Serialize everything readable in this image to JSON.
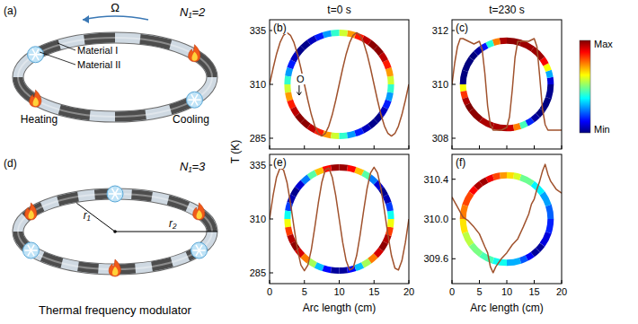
{
  "chart_data": [
    {
      "type": "line",
      "title": "t=0 s",
      "panel_label": "(b)",
      "annotations": [
        "O"
      ],
      "ylabel": "T (K)",
      "color": "#a0522d",
      "tick_labels": "y",
      "x": [
        0,
        0.5,
        1,
        1.5,
        2,
        2.5,
        3,
        3.5,
        4,
        4.5,
        5,
        5.5,
        6,
        6.5,
        7,
        7.5,
        8,
        8.5,
        9,
        9.5,
        10,
        10.5,
        11,
        11.5,
        12,
        12.5,
        13,
        13.5,
        14,
        14.5,
        15,
        15.5,
        16,
        16.5,
        17,
        17.5,
        18,
        18.5,
        19,
        19.5,
        20
      ],
      "values": [
        310,
        317.4,
        324.1,
        329.4,
        332.8,
        334,
        332.8,
        329.4,
        324.1,
        317.4,
        310,
        302.6,
        295.9,
        290.6,
        287.2,
        286,
        287.2,
        290.6,
        295.9,
        302.6,
        310,
        317.4,
        324.1,
        329.4,
        332.8,
        334,
        332.8,
        329.4,
        324.1,
        317.4,
        310,
        302.6,
        295.9,
        290.6,
        287.2,
        286,
        287.2,
        290.6,
        295.9,
        302.6,
        310
      ],
      "xlim": [
        0,
        20
      ],
      "xticks": [
        0,
        5,
        10,
        15,
        20
      ],
      "ylim": [
        280,
        340
      ],
      "yticks": [
        285,
        310,
        335
      ]
    },
    {
      "type": "line",
      "panel_label": "(e)",
      "xlabel": "Arc length (cm)",
      "color": "#a0522d",
      "x": [
        0,
        0.5,
        1,
        1.5,
        2,
        2.5,
        3,
        3.5,
        4,
        4.5,
        5,
        5.5,
        6,
        6.5,
        7,
        7.5,
        8,
        8.5,
        9,
        9.5,
        10,
        10.5,
        11,
        11.5,
        12,
        12.5,
        13,
        13.5,
        14,
        14.5,
        15,
        15.5,
        16,
        16.5,
        17,
        17.5,
        18,
        18.5,
        19,
        19.5,
        20
      ],
      "values": [
        310,
        320.9,
        329.4,
        333.7,
        332.8,
        327,
        317.4,
        306.3,
        295.9,
        288.6,
        286,
        288.6,
        295.9,
        306.3,
        317.4,
        327,
        332.8,
        333.7,
        329.4,
        320.9,
        310,
        299.1,
        290.6,
        286.3,
        287.2,
        293,
        302.6,
        313.7,
        324.1,
        331.4,
        334,
        331.4,
        324.1,
        313.7,
        302.6,
        293,
        287.2,
        286.3,
        290.6,
        299.1,
        310
      ],
      "xlim": [
        0,
        20
      ],
      "xticks": [
        0,
        5,
        10,
        15,
        20
      ],
      "ylim": [
        280,
        340
      ],
      "yticks": [
        285,
        310,
        335
      ]
    },
    {
      "type": "line",
      "title": "t=230 s",
      "panel_label": "(c)",
      "color": "#a0522d",
      "tick_labels": "y",
      "x": [
        0,
        0.5,
        1,
        1.5,
        2,
        3,
        4,
        5,
        5.5,
        6,
        6.5,
        7,
        7.5,
        8,
        9,
        10,
        10.5,
        11,
        11.5,
        12,
        13,
        14,
        15,
        15.5,
        16,
        16.5,
        17,
        17.5,
        18,
        19,
        20
      ],
      "values": [
        310.0,
        310.8,
        311.4,
        311.7,
        311.7,
        311.6,
        311.5,
        311.6,
        311.3,
        310.4,
        309.2,
        308.5,
        308.3,
        308.3,
        308.3,
        308.4,
        308.8,
        309.8,
        311.0,
        311.6,
        311.6,
        311.6,
        311.7,
        311.4,
        310.3,
        309.1,
        308.5,
        308.3,
        308.3,
        308.3,
        308.3
      ],
      "xlim": [
        0,
        20
      ],
      "xticks": [
        0,
        5,
        10,
        15,
        20
      ],
      "ylim": [
        307.6,
        312.4
      ],
      "yticks": [
        308,
        310,
        312
      ]
    },
    {
      "type": "line",
      "panel_label": "(f)",
      "xlabel": "Arc length (cm)",
      "color": "#a0522d",
      "x": [
        0,
        1,
        2,
        3,
        4,
        5,
        6,
        6.5,
        7,
        7.5,
        8,
        9,
        10,
        11,
        12,
        13,
        14,
        14.5,
        15,
        15.5,
        16,
        16.5,
        17,
        17.5,
        18,
        19,
        20
      ],
      "values": [
        310.22,
        310.12,
        310.02,
        309.98,
        309.92,
        309.85,
        309.72,
        309.66,
        309.52,
        309.46,
        309.52,
        309.6,
        309.66,
        309.74,
        309.8,
        309.92,
        310.05,
        310.15,
        310.2,
        310.3,
        310.38,
        310.48,
        310.55,
        310.45,
        310.38,
        310.3,
        310.26
      ],
      "xlim": [
        0,
        20
      ],
      "xticks": [
        0,
        5,
        10,
        15,
        20
      ],
      "ylim": [
        309.35,
        310.65
      ],
      "yticks": [
        309.6,
        {
          "value": 310,
          "label": "310.0"
        },
        310.4
      ]
    }
  ],
  "diagrams": [
    {
      "panel_label": "(a)",
      "count_label": "N₁=2",
      "rotation_label": "Ω",
      "material_labels": [
        "Material I",
        "Material II"
      ],
      "heating_label": "Heating",
      "cooling_label": "Cooling"
    },
    {
      "panel_label": "(d)",
      "count_label": "N₁=3",
      "radius_labels": [
        "r₁",
        "r₂"
      ]
    }
  ],
  "caption": "Thermal frequency modulator",
  "colorbar": {
    "max_label": "Max",
    "min_label": "Min",
    "colors": [
      "#00007f",
      "#0000ff",
      "#007fff",
      "#00ffff",
      "#7fff7f",
      "#ffff00",
      "#ff7f00",
      "#ff0000",
      "#7f0000"
    ]
  }
}
